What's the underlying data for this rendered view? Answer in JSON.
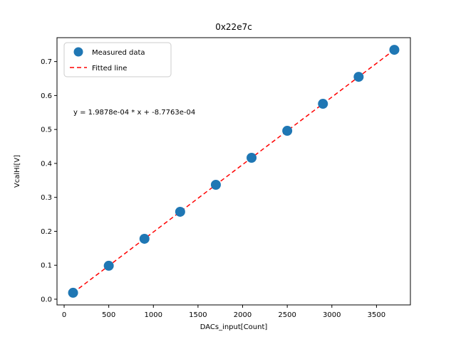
{
  "chart_data": {
    "type": "scatter",
    "title": "0x22e7c",
    "xlabel": "DACs_input[Count]",
    "ylabel": "VcalHi[V]",
    "annotation": "y = 1.9878e-04 * x + -8.7763e-04",
    "fit": {
      "slope": "1.9878e-04",
      "intercept": "-8.7763e-04"
    },
    "xlim": [
      -80,
      3880
    ],
    "ylim": [
      -0.0168,
      0.7704
    ],
    "x_ticks": [
      0,
      500,
      1000,
      1500,
      2000,
      2500,
      3000,
      3500
    ],
    "y_ticks": [
      0.0,
      0.1,
      0.2,
      0.3,
      0.4,
      0.5,
      0.6,
      0.7
    ],
    "grid": false,
    "legend_position": "upper left",
    "colors": {
      "measured": "#1f77b4",
      "fitted": "#ff0000"
    },
    "series": [
      {
        "name": "Measured data",
        "kind": "scatter",
        "color": "#1f77b4",
        "x": [
          100,
          500,
          900,
          1300,
          1700,
          2100,
          2500,
          2900,
          3300,
          3700
        ],
        "y": [
          0.019,
          0.0985,
          0.178,
          0.2575,
          0.337,
          0.4166,
          0.4961,
          0.5756,
          0.6551,
          0.7346
        ]
      },
      {
        "name": "Fitted line",
        "kind": "line",
        "style": "dashed",
        "color": "#ff0000",
        "x": [
          100,
          3700
        ],
        "y": [
          0.019,
          0.7346
        ]
      }
    ]
  }
}
